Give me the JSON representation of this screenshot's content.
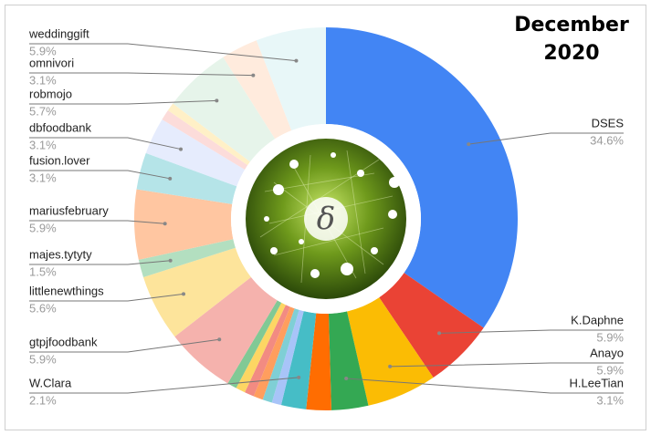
{
  "chart_data": {
    "type": "donut",
    "title": "December 2020",
    "categories": [
      "DSES",
      "K.Daphne",
      "Anayo",
      "H.LeeTian",
      null,
      "W.Clara",
      null,
      null,
      null,
      null,
      null,
      null,
      "gtpjfoodbank",
      "littlenewthings",
      "majes.tytyty",
      "mariusfebruary",
      "fusion.lover",
      "dbfoodbank",
      null,
      null,
      "robmojo",
      "omnivori",
      "weddinggift"
    ],
    "values": [
      34.6,
      5.9,
      5.9,
      3.1,
      2.1,
      2.1,
      0.8,
      0.8,
      0.8,
      0.8,
      0.8,
      0.8,
      5.9,
      5.6,
      1.5,
      5.9,
      3.1,
      3.1,
      0.9,
      0.7,
      5.7,
      3.1,
      5.9
    ],
    "value_labels": [
      "34.6%",
      "5.9%",
      "5.9%",
      "3.1%",
      null,
      "2.1%",
      null,
      null,
      null,
      null,
      null,
      null,
      "5.9%",
      "5.6%",
      "1.5%",
      "5.9%",
      "3.1%",
      "3.1%",
      null,
      null,
      "5.7%",
      "3.1%",
      "5.9%"
    ],
    "colors": [
      "#4285f4",
      "#ea4335",
      "#fbbc04",
      "#34a853",
      "#ff6d01",
      "#46bdc6",
      "#a8c4f8",
      "#7fcfd5",
      "#ff9e5e",
      "#f28b82",
      "#fdd663",
      "#81c995",
      "#f5b2ad",
      "#fde49b",
      "#b3dfc0",
      "#ffc6a1",
      "#b5e4e8",
      "#e6ecfd",
      "#fcdcda",
      "#fff0c7",
      "#e6f4ea",
      "#ffebdd",
      "#e8f7f8"
    ]
  },
  "center_label": "δ"
}
